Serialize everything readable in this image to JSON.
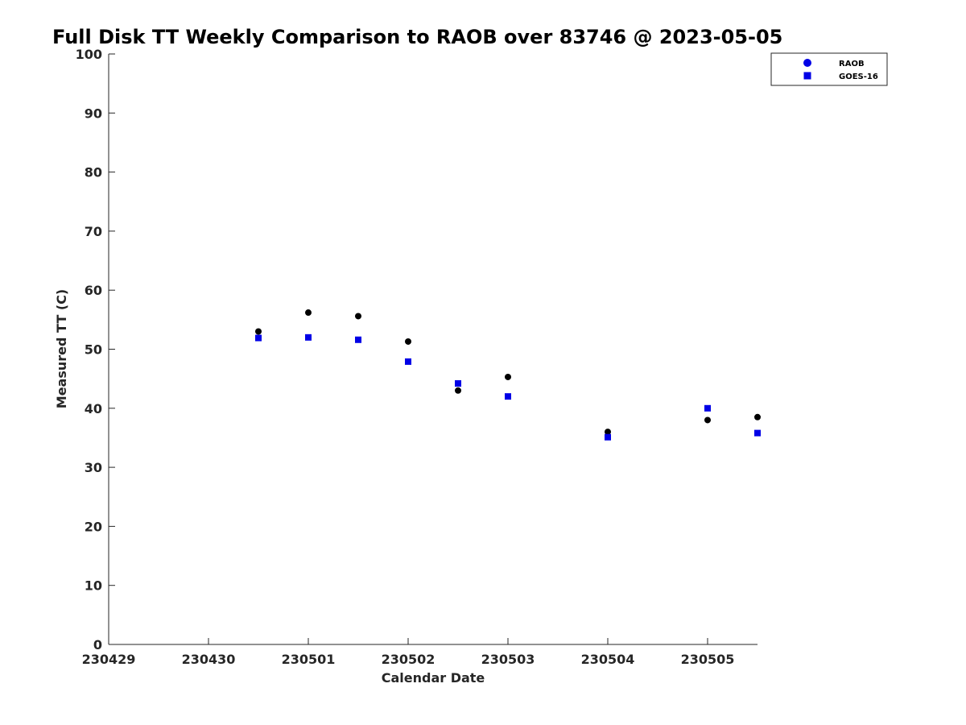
{
  "chart_data": {
    "type": "scatter",
    "title": "Full Disk TT Weekly Comparison to RAOB over 83746 @ 2023-05-05",
    "xlabel": "Calendar Date",
    "ylabel": "Measured TT (C)",
    "xlim": [
      0,
      6.5
    ],
    "ylim": [
      0,
      100
    ],
    "x_ticks": [
      0,
      1,
      2,
      3,
      4,
      5,
      6
    ],
    "x_tick_labels": [
      "230429",
      "230430",
      "230501",
      "230502",
      "230503",
      "230504",
      "230505"
    ],
    "y_ticks": [
      0,
      10,
      20,
      30,
      40,
      50,
      60,
      70,
      80,
      90,
      100
    ],
    "y_tick_labels": [
      "0",
      "10",
      "20",
      "30",
      "40",
      "50",
      "60",
      "70",
      "80",
      "90",
      "100"
    ],
    "grid": false,
    "legend_position": "top-right",
    "series": [
      {
        "name": "RAOB",
        "marker": "circle",
        "legend_color": "#0000e6",
        "point_color": "#000000",
        "x": [
          1.5,
          2.0,
          2.5,
          3.0,
          3.5,
          4.0,
          5.0,
          6.0,
          6.5
        ],
        "y": [
          53.0,
          56.2,
          55.6,
          51.3,
          43.0,
          45.3,
          36.0,
          38.0,
          38.5
        ]
      },
      {
        "name": "GOES-16",
        "marker": "square",
        "legend_color": "#0000e6",
        "point_color": "#0000e6",
        "x": [
          1.5,
          2.0,
          2.5,
          3.0,
          3.5,
          4.0,
          5.0,
          6.0,
          6.5
        ],
        "y": [
          51.9,
          52.0,
          51.6,
          47.9,
          44.2,
          42.0,
          35.1,
          40.0,
          35.8
        ]
      }
    ]
  }
}
